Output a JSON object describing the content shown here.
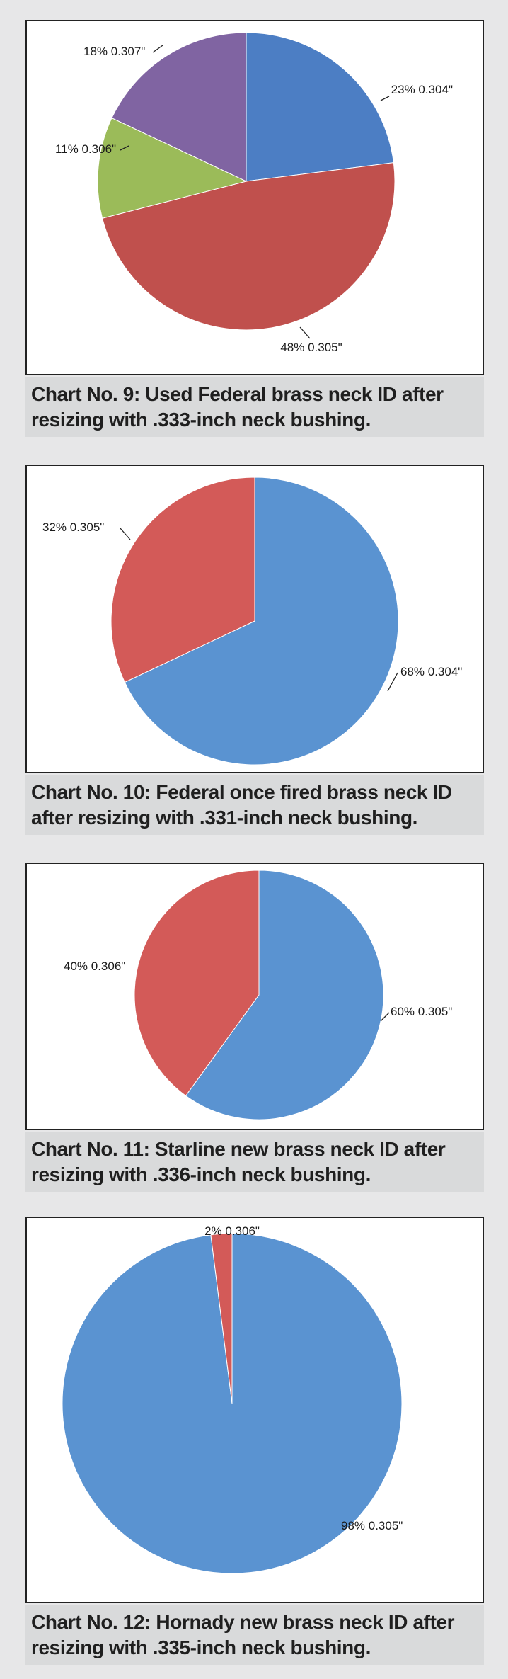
{
  "colors": {
    "blue_dark": "#4c7ec4",
    "red_dark": "#c0504d",
    "green": "#9bbb59",
    "purple": "#8064a2",
    "blue": "#5a93d1",
    "red": "#d35a58"
  },
  "chart_data": [
    {
      "type": "pie",
      "caption": "Chart No. 9: Used Federal brass neck ID after resizing with .333-inch neck bushing.",
      "slices": [
        {
          "label": "23% 0.304\"",
          "value": 23,
          "color": "#4c7ec4"
        },
        {
          "label": "48% 0.305\"",
          "value": 48,
          "color": "#c0504d"
        },
        {
          "label": "11% 0.306\"",
          "value": 11,
          "color": "#9bbb59"
        },
        {
          "label": "18% 0.307\"",
          "value": 18,
          "color": "#8064a2"
        }
      ]
    },
    {
      "type": "pie",
      "caption": "Chart No. 10: Federal once fired brass neck ID after resizing with .331-inch neck bushing.",
      "slices": [
        {
          "label": "68% 0.304\"",
          "value": 68,
          "color": "#5a93d1"
        },
        {
          "label": "32% 0.305\"",
          "value": 32,
          "color": "#d35a58"
        }
      ]
    },
    {
      "type": "pie",
      "caption": "Chart No. 11: Starline new brass neck ID after resizing with .336-inch neck bushing.",
      "slices": [
        {
          "label": "60% 0.305\"",
          "value": 60,
          "color": "#5a93d1"
        },
        {
          "label": "40% 0.306\"",
          "value": 40,
          "color": "#d35a58"
        }
      ]
    },
    {
      "type": "pie",
      "caption": "Chart No. 12: Hornady new brass neck ID after resizing with .335-inch neck bushing.",
      "slices": [
        {
          "label": "98% 0.305\"",
          "value": 98,
          "color": "#5a93d1"
        },
        {
          "label": "2% 0.306\"",
          "value": 2,
          "color": "#d35a58"
        }
      ]
    }
  ]
}
